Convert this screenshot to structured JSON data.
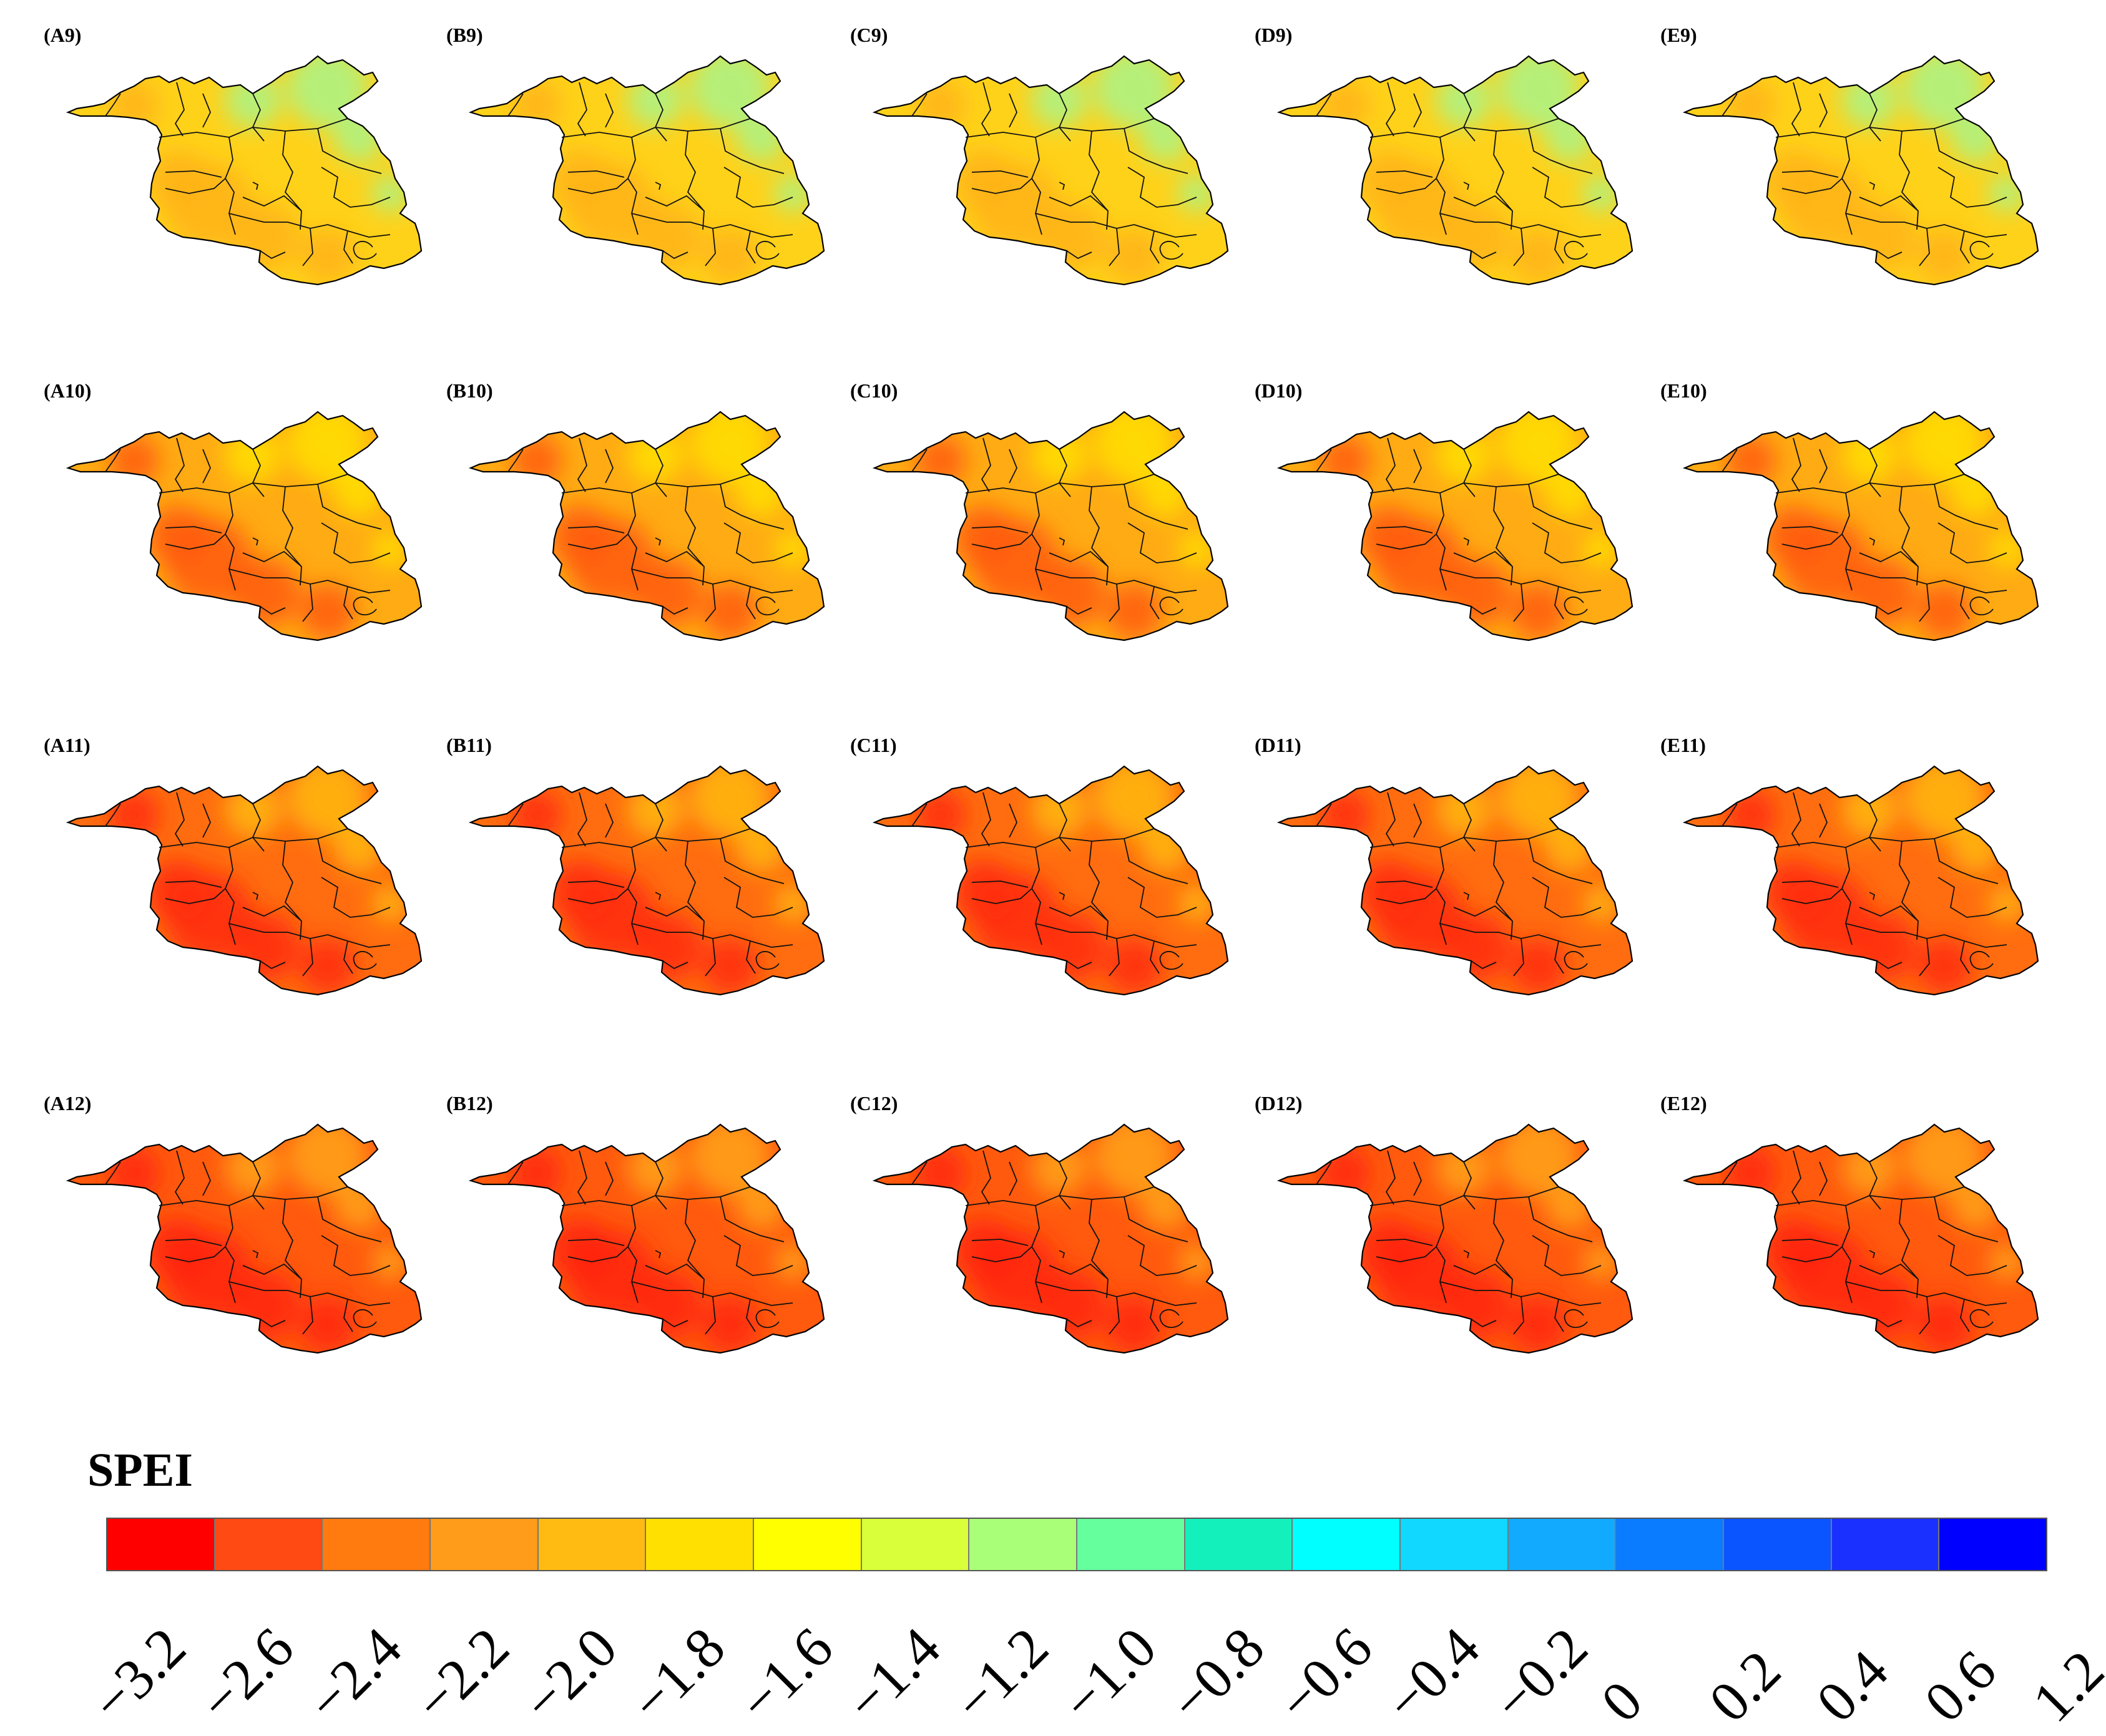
{
  "panels": [
    {
      "label": "(A9)",
      "theme": "light"
    },
    {
      "label": "(B9)",
      "theme": "light"
    },
    {
      "label": "(C9)",
      "theme": "light"
    },
    {
      "label": "(D9)",
      "theme": "light"
    },
    {
      "label": "(E9)",
      "theme": "light"
    },
    {
      "label": "(A10)",
      "theme": "mid"
    },
    {
      "label": "(B10)",
      "theme": "mid"
    },
    {
      "label": "(C10)",
      "theme": "mid"
    },
    {
      "label": "(D10)",
      "theme": "mid"
    },
    {
      "label": "(E10)",
      "theme": "mid"
    },
    {
      "label": "(A11)",
      "theme": "dark"
    },
    {
      "label": "(B11)",
      "theme": "dark"
    },
    {
      "label": "(C11)",
      "theme": "dark"
    },
    {
      "label": "(D11)",
      "theme": "dark"
    },
    {
      "label": "(E11)",
      "theme": "dark"
    },
    {
      "label": "(A12)",
      "theme": "darkest"
    },
    {
      "label": "(B12)",
      "theme": "darkest"
    },
    {
      "label": "(C12)",
      "theme": "darkest"
    },
    {
      "label": "(D12)",
      "theme": "darkest"
    },
    {
      "label": "(E12)",
      "theme": "darkest"
    }
  ],
  "legend": {
    "title": "SPEI",
    "colors": [
      "#ff0000",
      "#ff4a14",
      "#ff7a0f",
      "#ff9c1a",
      "#ffbb12",
      "#ffe000",
      "#ffff00",
      "#d8ff3a",
      "#aaff78",
      "#66ff9e",
      "#14f0bc",
      "#00ffff",
      "#10d8ff",
      "#12aaff",
      "#0a7cff",
      "#0a55ff",
      "#1a30ff",
      "#0000ff"
    ],
    "ticks": [
      "−3.2",
      "−2.6",
      "−2.4",
      "−2.2",
      "−2.0",
      "−1.8",
      "−1.6",
      "−1.4",
      "−1.2",
      "−1.0",
      "−0.8",
      "−0.6",
      "−0.4",
      "−0.2",
      "0",
      "0.2",
      "0.4",
      "0.6",
      "1.2"
    ]
  },
  "palettes": {
    "light": {
      "main": "#ffd21a",
      "accent": "#ffb315",
      "cool": "#a9f58a"
    },
    "mid": {
      "main": "#ffab14",
      "accent": "#ff5a10",
      "cool": "#ffe000"
    },
    "dark": {
      "main": "#ff6d10",
      "accent": "#ff2a0c",
      "cool": "#ffba12"
    },
    "darkest": {
      "main": "#ff5a0e",
      "accent": "#ff2508",
      "cool": "#ffa514"
    }
  }
}
